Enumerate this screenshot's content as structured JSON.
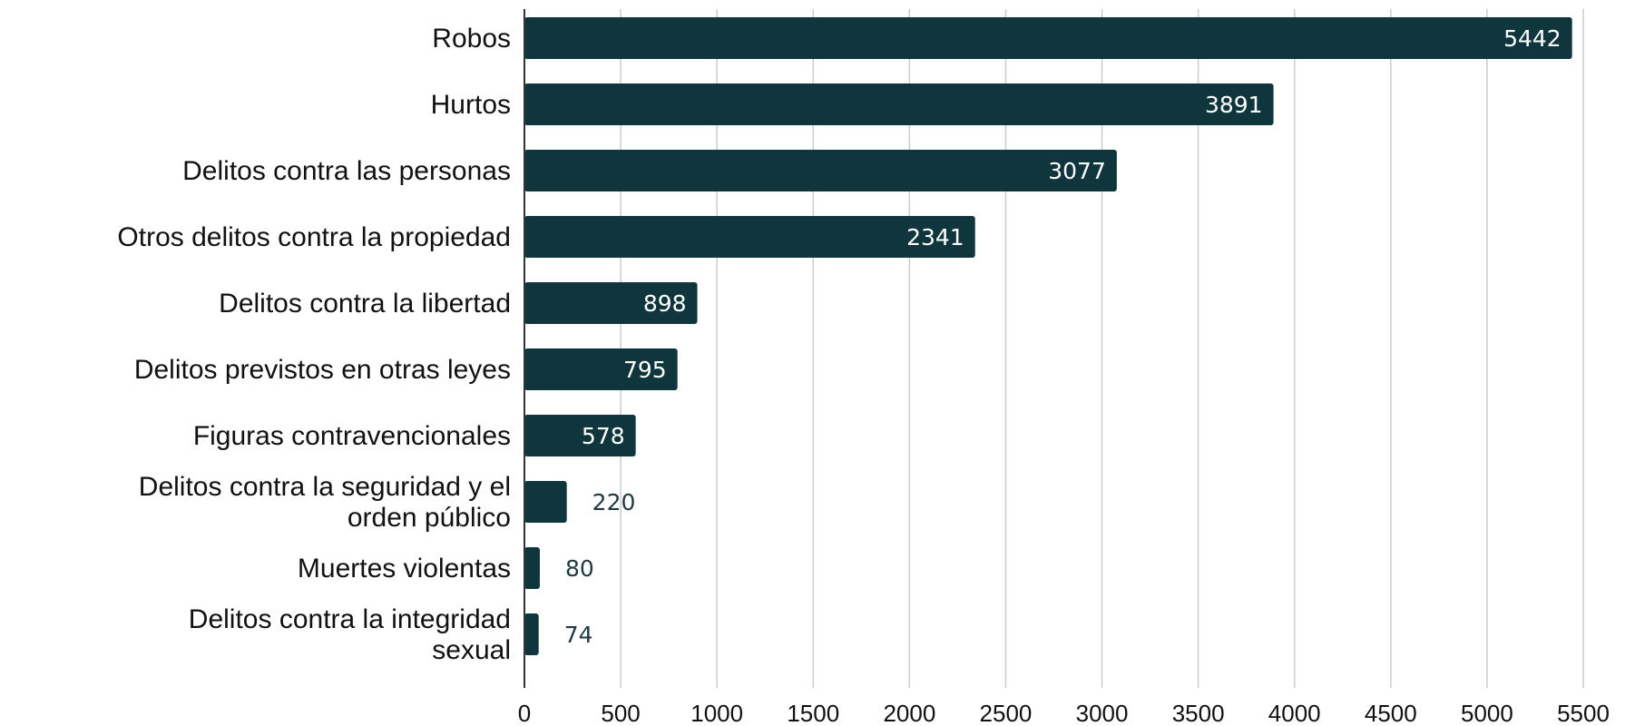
{
  "chart_data": {
    "type": "bar",
    "orientation": "horizontal",
    "categories": [
      "Robos",
      "Hurtos",
      "Delitos contra las personas",
      "Otros delitos contra la propiedad",
      "Delitos contra la libertad",
      "Delitos previstos en otras leyes",
      "Figuras contravencionales",
      "Delitos contra la seguridad y el orden público",
      "Muertes violentas",
      "Delitos contra la integridad sexual"
    ],
    "values": [
      5442,
      3891,
      3077,
      2341,
      898,
      795,
      578,
      220,
      80,
      74
    ],
    "xlim": [
      0,
      5500
    ],
    "xticks": [
      0,
      500,
      1000,
      1500,
      2000,
      2500,
      3000,
      3500,
      4000,
      4500,
      5000,
      5500
    ],
    "title": "",
    "xlabel": "",
    "ylabel": "",
    "grid": "vertical",
    "legend": "none",
    "data_labels": true,
    "colors": {
      "bar": "#0f363d",
      "grid": "#cccccc",
      "axis": "#333333",
      "label_inside": "#ffffff",
      "label_outside": "#1e3a40"
    }
  }
}
